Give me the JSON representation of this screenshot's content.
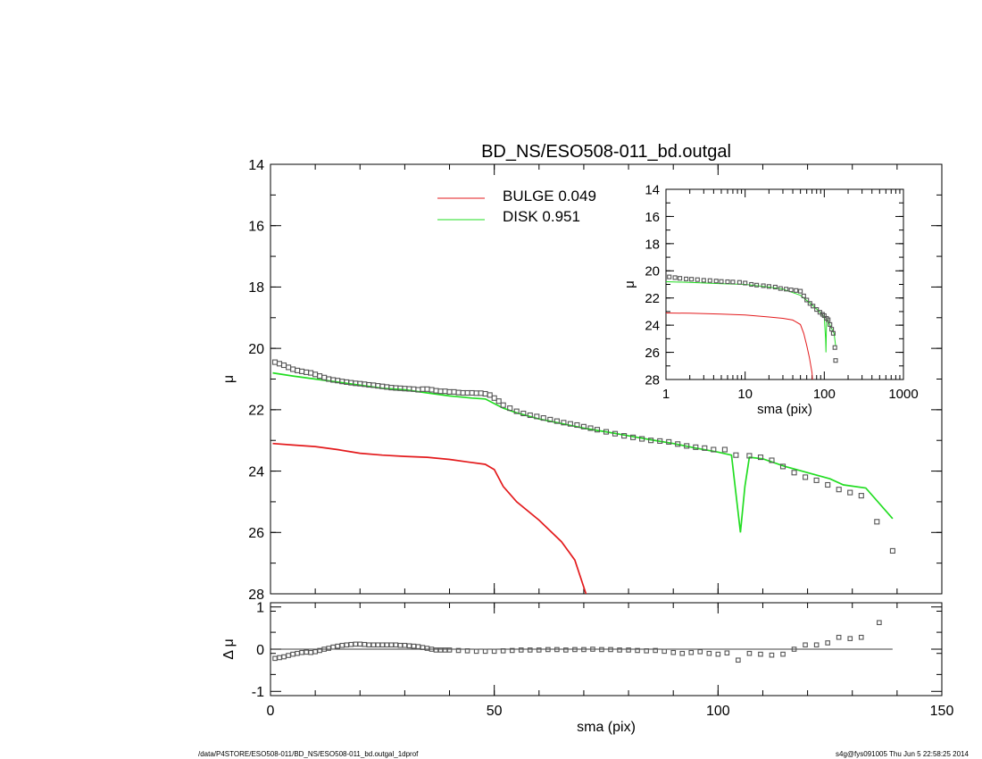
{
  "footer": {
    "path": "/data/P4STORE/ESO508-011/BD_NS/ESO508-011_bd.outgal_1dprof",
    "stamp": "s4g@fys091005  Thu Jun  5 22:58:25 2014"
  },
  "colors": {
    "bulge": "#e31a1c",
    "disk": "#22dd22",
    "data": "#555555",
    "axis": "#000000"
  },
  "chart_data": [
    {
      "id": "main",
      "type": "line",
      "title": "BD_NS/ESO508-011_bd.outgal",
      "xlabel": "",
      "ylabel": "μ",
      "xlim": [
        0,
        150
      ],
      "ylim": [
        28,
        14
      ],
      "yticks": [
        14,
        16,
        18,
        20,
        22,
        24,
        26,
        28
      ],
      "legend": {
        "placement": "top-center",
        "entries": [
          "BULGE  0.049",
          "DISK  0.951"
        ]
      },
      "series": [
        {
          "name": "BULGE  0.049",
          "color": "#e31a1c",
          "style": "line",
          "x": [
            0.5,
            5,
            10,
            15,
            20,
            25,
            30,
            35,
            40,
            44,
            48,
            50,
            52,
            55,
            60,
            65,
            68,
            70.5
          ],
          "y": [
            23.1,
            23.15,
            23.2,
            23.3,
            23.42,
            23.48,
            23.52,
            23.55,
            23.62,
            23.7,
            23.78,
            23.95,
            24.5,
            25.0,
            25.6,
            26.3,
            26.9,
            28.0
          ]
        },
        {
          "name": "DISK  0.951",
          "color": "#22dd22",
          "style": "line",
          "x": [
            0.5,
            5,
            10,
            15,
            20,
            25,
            30,
            35,
            40,
            45,
            48,
            50,
            52,
            55,
            60,
            65,
            70,
            75,
            80,
            85,
            90,
            95,
            100,
            103,
            104.2,
            105,
            106,
            107,
            110,
            115,
            120,
            125,
            128,
            133,
            139
          ],
          "y": [
            20.8,
            20.9,
            21.0,
            21.1,
            21.2,
            21.3,
            21.35,
            21.45,
            21.55,
            21.62,
            21.65,
            21.8,
            21.95,
            22.1,
            22.3,
            22.45,
            22.6,
            22.72,
            22.85,
            22.98,
            23.1,
            23.25,
            23.38,
            23.48,
            25.0,
            26.0,
            24.5,
            23.55,
            23.6,
            23.85,
            24.05,
            24.25,
            24.45,
            24.55,
            25.55
          ]
        },
        {
          "name": "",
          "color": "#555555",
          "style": "points",
          "x": [
            1,
            2,
            3,
            4,
            5,
            6,
            7,
            8,
            9,
            10,
            11,
            12,
            13,
            14,
            15,
            16,
            17,
            18,
            19,
            20,
            21,
            22,
            23,
            24,
            25,
            26,
            27,
            28,
            29,
            30,
            31,
            32,
            33,
            34,
            35,
            36,
            37,
            38,
            39,
            40,
            41,
            42,
            43,
            44,
            45,
            46,
            47,
            48,
            49,
            50,
            51,
            52,
            53.5,
            55,
            56.5,
            58,
            59.5,
            61,
            62.5,
            64,
            65.5,
            67,
            68.5,
            70,
            71.5,
            73,
            75,
            77,
            79,
            81,
            83,
            85,
            87,
            89,
            91,
            93,
            95,
            97,
            99,
            101.5,
            104,
            107,
            109.5,
            112,
            114.5,
            117,
            119.5,
            122,
            124.5,
            127,
            129.5,
            132,
            135.5,
            139
          ],
          "y": [
            20.45,
            20.5,
            20.55,
            20.62,
            20.68,
            20.72,
            20.75,
            20.78,
            20.8,
            20.85,
            20.9,
            20.95,
            21.0,
            21.03,
            21.05,
            21.08,
            21.1,
            21.12,
            21.14,
            21.15,
            21.17,
            21.19,
            21.2,
            21.22,
            21.24,
            21.26,
            21.28,
            21.29,
            21.3,
            21.31,
            21.32,
            21.33,
            21.35,
            21.33,
            21.33,
            21.35,
            21.38,
            21.4,
            21.4,
            21.42,
            21.42,
            21.44,
            21.45,
            21.45,
            21.45,
            21.46,
            21.46,
            21.48,
            21.52,
            21.62,
            21.72,
            21.85,
            21.95,
            22.05,
            22.12,
            22.18,
            22.22,
            22.27,
            22.32,
            22.37,
            22.42,
            22.46,
            22.5,
            22.55,
            22.6,
            22.65,
            22.72,
            22.78,
            22.85,
            22.9,
            22.95,
            23.0,
            23.02,
            23.05,
            23.12,
            23.18,
            23.22,
            23.25,
            23.3,
            23.3,
            23.48,
            23.5,
            23.55,
            23.65,
            23.85,
            24.05,
            24.2,
            24.3,
            24.45,
            24.6,
            24.7,
            24.8,
            25.65,
            26.6
          ]
        }
      ]
    },
    {
      "id": "residual",
      "type": "scatter",
      "xlabel": "sma (pix)",
      "ylabel": "Δ μ",
      "xlim": [
        0,
        150
      ],
      "ylim": [
        -1.1,
        1.1
      ],
      "xticks": [
        0,
        50,
        100,
        150
      ],
      "yticks": [
        -1,
        0,
        1
      ],
      "zero_line": true,
      "series": [
        {
          "name": "",
          "color": "#555555",
          "style": "points",
          "x": [
            1,
            2,
            3,
            4,
            5,
            6,
            7,
            8,
            9,
            10,
            11,
            12,
            13,
            14,
            15,
            16,
            17,
            18,
            19,
            20,
            21,
            22,
            23,
            24,
            25,
            26,
            27,
            28,
            29,
            30,
            31,
            32,
            33,
            34,
            35,
            36,
            37,
            38,
            39,
            40,
            42,
            44,
            46,
            48,
            50,
            52,
            54,
            56,
            58,
            60,
            62,
            64,
            66,
            68,
            70,
            72,
            74,
            76,
            78,
            80,
            82,
            84,
            86,
            88,
            90,
            92,
            94,
            96,
            98,
            100,
            102,
            104.5,
            107,
            109.5,
            112,
            114.5,
            117,
            119.5,
            122,
            124.5,
            127,
            129.5,
            132,
            136
          ],
          "y": [
            -0.22,
            -0.2,
            -0.18,
            -0.15,
            -0.12,
            -0.1,
            -0.08,
            -0.07,
            -0.08,
            -0.06,
            -0.03,
            0.0,
            0.02,
            0.05,
            0.07,
            0.09,
            0.1,
            0.11,
            0.12,
            0.12,
            0.11,
            0.1,
            0.1,
            0.1,
            0.1,
            0.1,
            0.1,
            0.1,
            0.09,
            0.09,
            0.08,
            0.07,
            0.06,
            0.04,
            0.02,
            0.0,
            -0.02,
            -0.02,
            -0.02,
            -0.02,
            -0.03,
            -0.04,
            -0.05,
            -0.05,
            -0.05,
            -0.04,
            -0.03,
            -0.02,
            -0.02,
            -0.02,
            -0.01,
            -0.01,
            -0.02,
            -0.01,
            -0.01,
            0.0,
            -0.01,
            -0.01,
            -0.02,
            -0.02,
            -0.03,
            -0.04,
            -0.03,
            -0.05,
            -0.08,
            -0.1,
            -0.08,
            -0.06,
            -0.1,
            -0.12,
            -0.09,
            -0.26,
            -0.1,
            -0.12,
            -0.14,
            -0.12,
            0.0,
            0.1,
            0.1,
            0.15,
            0.28,
            0.25,
            0.28,
            0.63
          ]
        }
      ]
    },
    {
      "id": "inset",
      "type": "line",
      "xlabel": "sma (pix)",
      "ylabel": "μ",
      "xscale": "log",
      "xlim": [
        1,
        1000
      ],
      "ylim": [
        28,
        14
      ],
      "xticks": [
        1,
        10,
        100,
        1000
      ],
      "yticks": [
        14,
        16,
        18,
        20,
        22,
        24,
        26,
        28
      ],
      "series": [
        {
          "name": "",
          "color": "#e31a1c",
          "style": "line",
          "x": [
            1,
            2,
            5,
            10,
            20,
            30,
            40,
            50,
            55,
            60,
            65,
            70,
            71
          ],
          "y": [
            23.1,
            23.12,
            23.18,
            23.25,
            23.4,
            23.5,
            23.62,
            23.95,
            24.6,
            25.5,
            26.4,
            27.5,
            28.0
          ]
        },
        {
          "name": "",
          "color": "#22dd22",
          "style": "line",
          "x": [
            1,
            2,
            5,
            10,
            20,
            30,
            50,
            70,
            90,
            100,
            104,
            105,
            107,
            110,
            120,
            133,
            139
          ],
          "y": [
            20.8,
            20.85,
            20.95,
            21.0,
            21.2,
            21.35,
            21.8,
            22.5,
            23.1,
            23.4,
            25.0,
            26.0,
            23.6,
            23.6,
            24.1,
            24.6,
            25.5
          ]
        },
        {
          "name": "",
          "color": "#555555",
          "style": "points",
          "x": [
            1.1,
            1.3,
            1.5,
            1.8,
            2.1,
            2.5,
            3,
            3.6,
            4.3,
            5,
            6,
            7,
            8.5,
            10,
            12,
            14,
            17,
            20,
            24,
            28,
            33,
            38,
            44,
            50,
            55,
            60,
            66,
            72,
            80,
            88,
            95,
            100,
            107,
            112,
            118,
            124,
            130,
            136,
            139
          ],
          "y": [
            20.45,
            20.5,
            20.55,
            20.6,
            20.62,
            20.65,
            20.7,
            20.72,
            20.75,
            20.78,
            20.8,
            20.82,
            20.85,
            20.9,
            21.0,
            21.05,
            21.1,
            21.15,
            21.2,
            21.3,
            21.35,
            21.4,
            21.45,
            21.5,
            21.85,
            22.15,
            22.4,
            22.6,
            22.85,
            23.05,
            23.2,
            23.3,
            23.5,
            23.6,
            23.95,
            24.3,
            24.6,
            25.65,
            26.6
          ]
        }
      ]
    }
  ]
}
